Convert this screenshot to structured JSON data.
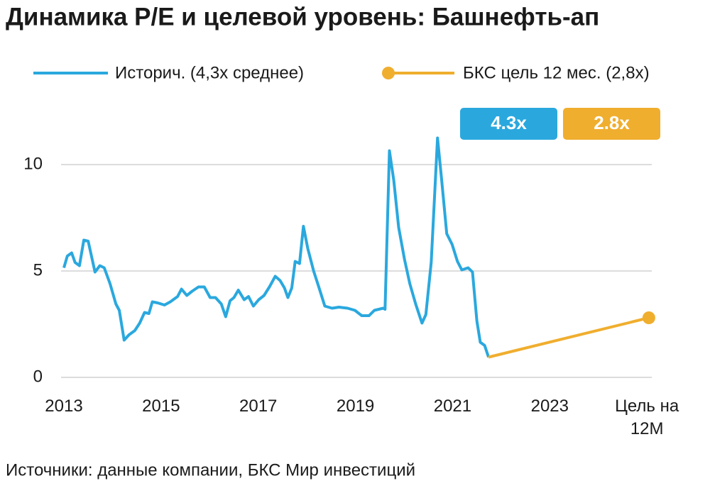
{
  "chart_data": {
    "type": "line",
    "title": "Динамика P/E и целевой уровень: Башнефть-ап",
    "series": [
      {
        "name": "Историч. (4,3x среднее)",
        "color": "#2aa8de",
        "x": [
          2013.0,
          2013.07,
          2013.16,
          2013.23,
          2013.32,
          2013.41,
          2013.5,
          2013.64,
          2013.74,
          2013.83,
          2013.95,
          2014.07,
          2014.14,
          2014.24,
          2014.34,
          2014.46,
          2014.56,
          2014.66,
          2014.75,
          2014.82,
          2014.93,
          2015.07,
          2015.19,
          2015.34,
          2015.42,
          2015.53,
          2015.64,
          2015.77,
          2015.89,
          2016.01,
          2016.12,
          2016.24,
          2016.33,
          2016.42,
          2016.5,
          2016.59,
          2016.71,
          2016.8,
          2016.9,
          2017.01,
          2017.12,
          2017.23,
          2017.35,
          2017.45,
          2017.54,
          2017.61,
          2017.69,
          2017.76,
          2017.85,
          2017.93,
          2018.02,
          2018.14,
          2018.26,
          2018.37,
          2018.52,
          2018.66,
          2018.84,
          2018.99,
          2019.13,
          2019.28,
          2019.39,
          2019.57,
          2019.61,
          2019.7,
          2019.79,
          2019.89,
          2020.01,
          2020.12,
          2020.24,
          2020.37,
          2020.45,
          2020.56,
          2020.69,
          2020.77,
          2020.88,
          2020.99,
          2021.1,
          2021.19,
          2021.32,
          2021.41,
          2021.5,
          2021.57,
          2021.66,
          2021.74
        ],
        "values": [
          5.15,
          5.7,
          5.85,
          5.4,
          5.25,
          6.45,
          6.4,
          4.95,
          5.25,
          5.15,
          4.4,
          3.45,
          3.15,
          1.75,
          2.0,
          2.2,
          2.55,
          3.05,
          3.0,
          3.55,
          3.5,
          3.4,
          3.55,
          3.8,
          4.15,
          3.85,
          4.05,
          4.25,
          4.25,
          3.75,
          3.75,
          3.45,
          2.85,
          3.6,
          3.75,
          4.1,
          3.65,
          3.8,
          3.35,
          3.65,
          3.85,
          4.25,
          4.75,
          4.55,
          4.2,
          3.75,
          4.2,
          5.45,
          5.35,
          7.1,
          6.05,
          5.0,
          4.15,
          3.35,
          3.25,
          3.3,
          3.25,
          3.15,
          2.9,
          2.9,
          3.15,
          3.25,
          3.2,
          10.65,
          9.25,
          7.05,
          5.55,
          4.4,
          3.45,
          2.55,
          2.95,
          5.4,
          11.25,
          9.4,
          6.75,
          6.25,
          5.45,
          5.05,
          5.15,
          4.95,
          2.65,
          1.65,
          1.5,
          0.95
        ]
      },
      {
        "name": "БКС цель 12 мес. (2,8x)",
        "color": "#f0ae2e",
        "x": [
          2021.74,
          2025.04
        ],
        "values": [
          0.95,
          2.8
        ]
      }
    ],
    "xlim": [
      2013,
      2025.1
    ],
    "xticks": [
      2013,
      2015,
      2017,
      2019,
      2021,
      2023,
      {
        "value": 2025,
        "label": "Цель на 12М"
      }
    ],
    "ylim": [
      0,
      12
    ],
    "yticks": [
      0,
      5,
      10
    ],
    "grid": true,
    "badges": [
      {
        "label": "4.3x",
        "color": "#2aa8de"
      },
      {
        "label": "2.8x",
        "color": "#f0ae2e"
      }
    ],
    "source": "Источники: данные компании, БКС Мир инвестиций"
  }
}
